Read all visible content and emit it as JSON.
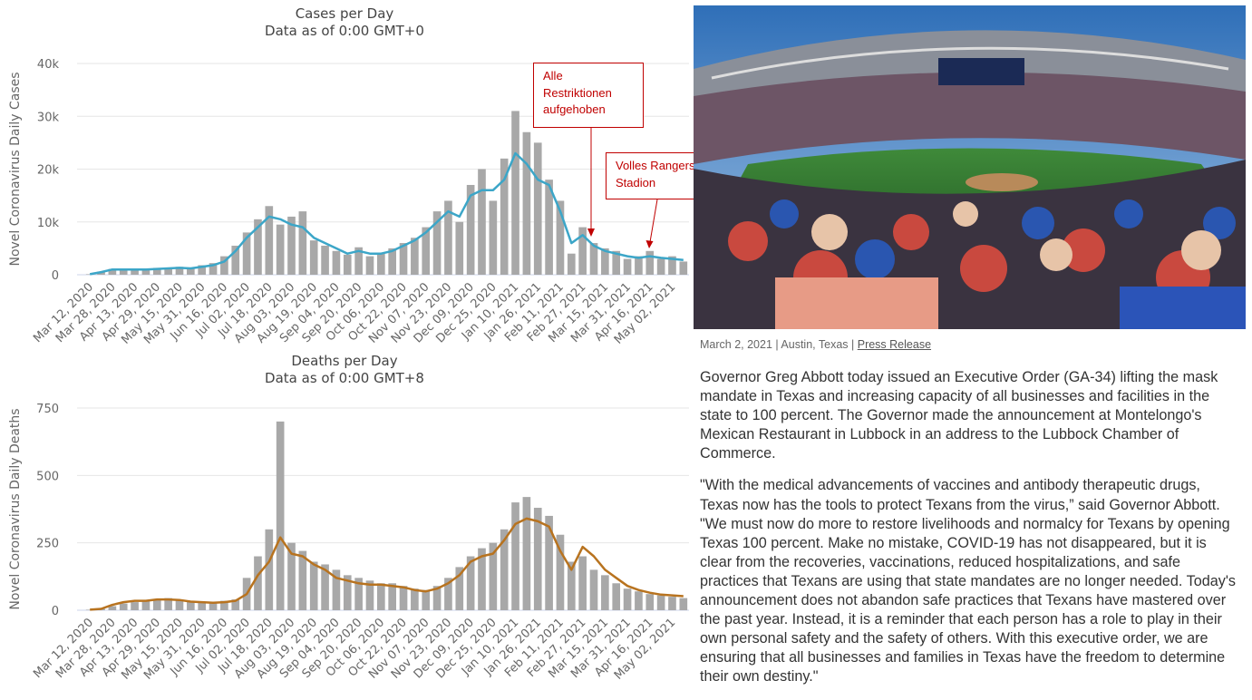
{
  "chart_data": [
    {
      "type": "bar",
      "title": "Cases per Day",
      "subtitle": "Data as of 0:00 GMT+0",
      "y_label": "Novel Coronavirus Daily Cases",
      "categories": [
        "Mar 12, 2020",
        null,
        "Mar 28, 2020",
        null,
        "Apr 13, 2020",
        null,
        "Apr 29, 2020",
        null,
        "May 15, 2020",
        null,
        "May 31, 2020",
        null,
        "Jun 16, 2020",
        null,
        "Jul 02, 2020",
        null,
        "Jul 18, 2020",
        null,
        "Aug 03, 2020",
        null,
        "Aug 19, 2020",
        null,
        "Sep 04, 2020",
        null,
        "Sep 20, 2020",
        null,
        "Oct 06, 2020",
        null,
        "Oct 22, 2020",
        null,
        "Nov 07, 2020",
        null,
        "Nov 23, 2020",
        null,
        "Dec 09, 2020",
        null,
        "Dec 25, 2020",
        null,
        "Jan 10, 2021",
        null,
        "Jan 26, 2021",
        null,
        "Feb 11, 2021",
        null,
        "Feb 27, 2021",
        null,
        "Mar 15, 2021",
        null,
        "Mar 31, 2021",
        null,
        "Apr 16, 2021",
        null,
        "May 02, 2021",
        null
      ],
      "series": [
        {
          "type": "bar",
          "color": "#a8a8a8",
          "values": [
            100,
            600,
            1100,
            1000,
            1200,
            900,
            1300,
            1100,
            1500,
            1300,
            1800,
            2200,
            3500,
            5500,
            8000,
            10500,
            13000,
            9500,
            11000,
            12000,
            6500,
            5500,
            4500,
            3800,
            5200,
            3500,
            4200,
            5000,
            6000,
            7000,
            9000,
            12000,
            14000,
            10000,
            17000,
            20000,
            14000,
            22000,
            31000,
            27000,
            25000,
            18000,
            14000,
            4000,
            9000,
            6000,
            5000,
            4500,
            3000,
            3500,
            4500,
            3000,
            3500,
            2500
          ]
        },
        {
          "type": "line",
          "color": "#3ca6c8",
          "values": [
            100,
            500,
            1000,
            1000,
            1000,
            1000,
            1100,
            1200,
            1300,
            1200,
            1500,
            1800,
            2500,
            4500,
            7000,
            9000,
            11000,
            10500,
            9500,
            9000,
            7000,
            6000,
            5000,
            4000,
            4500,
            4000,
            4000,
            4500,
            5500,
            6500,
            8000,
            10000,
            12000,
            11000,
            15000,
            16000,
            16000,
            18000,
            23000,
            21000,
            18000,
            17000,
            12000,
            6000,
            7500,
            5500,
            4500,
            4000,
            3500,
            3200,
            3500,
            3200,
            3000,
            2800
          ]
        }
      ],
      "ylim": [
        0,
        40000
      ],
      "yticks": [
        0,
        {
          "value": 10000,
          "label": "10k"
        },
        {
          "value": 20000,
          "label": "20k"
        },
        {
          "value": 30000,
          "label": "30k"
        },
        {
          "value": 40000,
          "label": "40k"
        }
      ],
      "grid": true,
      "annotations": [
        "Alle Restriktionen aufgehoben",
        "Volles Rangers Stadion"
      ]
    },
    {
      "type": "bar",
      "title": "Deaths per Day",
      "subtitle": "Data as of 0:00 GMT+8",
      "y_label": "Novel Coronavirus Daily Deaths",
      "categories": [
        "Mar 12, 2020",
        null,
        "Mar 28, 2020",
        null,
        "Apr 13, 2020",
        null,
        "Apr 29, 2020",
        null,
        "May 15, 2020",
        null,
        "May 31, 2020",
        null,
        "Jun 16, 2020",
        null,
        "Jul 02, 2020",
        null,
        "Jul 18, 2020",
        null,
        "Aug 03, 2020",
        null,
        "Aug 19, 2020",
        null,
        "Sep 04, 2020",
        null,
        "Sep 20, 2020",
        null,
        "Oct 06, 2020",
        null,
        "Oct 22, 2020",
        null,
        "Nov 07, 2020",
        null,
        "Nov 23, 2020",
        null,
        "Dec 09, 2020",
        null,
        "Dec 25, 2020",
        null,
        "Jan 10, 2021",
        null,
        "Jan 26, 2021",
        null,
        "Feb 11, 2021",
        null,
        "Feb 27, 2021",
        null,
        "Mar 15, 2021",
        null,
        "Mar 31, 2021",
        null,
        "Apr 16, 2021",
        null,
        "May 02, 2021",
        null
      ],
      "series": [
        {
          "type": "bar",
          "color": "#a8a8a8",
          "values": [
            2,
            5,
            15,
            25,
            30,
            35,
            40,
            45,
            40,
            35,
            30,
            30,
            35,
            40,
            120,
            200,
            300,
            700,
            250,
            220,
            180,
            170,
            150,
            130,
            120,
            110,
            100,
            100,
            90,
            80,
            75,
            90,
            120,
            160,
            200,
            230,
            250,
            300,
            400,
            420,
            380,
            350,
            280,
            180,
            200,
            150,
            130,
            100,
            80,
            70,
            60,
            55,
            50,
            45
          ]
        },
        {
          "type": "line",
          "color": "#b8731f",
          "values": [
            2,
            5,
            20,
            30,
            35,
            35,
            40,
            40,
            38,
            32,
            30,
            28,
            30,
            35,
            60,
            130,
            180,
            270,
            210,
            200,
            170,
            150,
            120,
            110,
            100,
            95,
            95,
            90,
            85,
            75,
            70,
            80,
            100,
            130,
            180,
            200,
            210,
            260,
            320,
            340,
            330,
            310,
            220,
            150,
            235,
            200,
            150,
            120,
            90,
            75,
            65,
            58,
            55,
            52
          ]
        }
      ],
      "ylim": [
        0,
        750
      ],
      "yticks": [
        0,
        250,
        500,
        750
      ],
      "grid": true
    }
  ],
  "article": {
    "meta": "March 2, 2021 | Austin, Texas |",
    "link": "Press Release",
    "paragraphs": [
      "Governor Greg Abbott today issued an Executive Order (GA-34) lifting the mask mandate in Texas and increasing capacity of all businesses and facilities in the state to 100 percent. The Governor made the announcement at Montelongo's Mexican Restaurant in Lubbock in an address to the Lubbock Chamber of Commerce.",
      "\"With the medical advancements of vaccines and antibody therapeutic drugs, Texas now has the tools to protect Texans from the virus,” said Governor Abbott. \"We must now do more to restore livelihoods and normalcy for Texans by opening Texas 100 percent. Make no mistake, COVID-19 has not disappeared, but it is clear from the recoveries, vaccinations, reduced hospitalizations, and safe practices that Texans are using that state mandates are no longer needed. Today's announcement does not abandon safe practices that Texans have mastered over the past year. Instead, it is a reminder that each person has a role to play in their own personal safety and the safety of others. With this executive order, we are ensuring that all businesses and families in Texas have the freedom to determine their own destiny.\""
    ]
  }
}
